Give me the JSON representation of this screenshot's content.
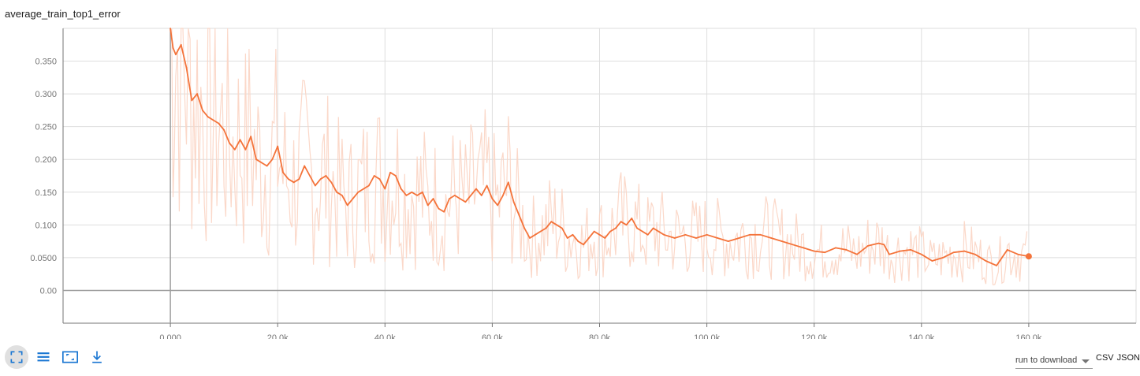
{
  "card": {
    "title": "average_train_top1_error"
  },
  "toolbar": {
    "buttons": [
      {
        "name": "expand-icon",
        "tooltip": ""
      },
      {
        "name": "list-icon",
        "tooltip": ""
      },
      {
        "name": "fit-domain-icon",
        "tooltip": ""
      },
      {
        "name": "download-icon",
        "tooltip": ""
      }
    ],
    "accent": "#1976d2"
  },
  "download": {
    "select_label": "run to download",
    "csv_label": "CSV",
    "json_label": "JSON"
  },
  "chart_data": {
    "type": "line",
    "title": "average_train_top1_error",
    "xlabel": "",
    "ylabel": "",
    "xlim": [
      -20000,
      180000
    ],
    "ylim": [
      -0.05,
      0.4
    ],
    "x_ticks": [
      0,
      20000,
      40000,
      60000,
      80000,
      100000,
      120000,
      140000,
      160000
    ],
    "x_tick_labels": [
      "0.000",
      "20.0k",
      "40.0k",
      "60.0k",
      "80.0k",
      "100.0k",
      "120.0k",
      "140.0k",
      "160.0k"
    ],
    "y_ticks": [
      0,
      0.05,
      0.1,
      0.15,
      0.2,
      0.25,
      0.3,
      0.35
    ],
    "y_tick_labels": [
      "0.00",
      "0.0500",
      "0.100",
      "0.150",
      "0.200",
      "0.250",
      "0.300",
      "0.350"
    ],
    "grid": true,
    "colors": {
      "smoothed": "#f4733a",
      "raw": "#fbd4c3",
      "grid": "#dedede",
      "axis": "#757575"
    },
    "series": [
      {
        "role": "smoothed",
        "x": [
          0,
          500,
          1000,
          2000,
          3000,
          4000,
          5000,
          6000,
          7000,
          8000,
          9000,
          10000,
          11000,
          12000,
          13000,
          14000,
          15000,
          16000,
          17000,
          18000,
          19000,
          20000,
          21000,
          22000,
          23000,
          24000,
          25000,
          26000,
          27000,
          28000,
          29000,
          30000,
          31000,
          32000,
          33000,
          34000,
          35000,
          36000,
          37000,
          38000,
          39000,
          40000,
          41000,
          42000,
          43000,
          44000,
          45000,
          46000,
          47000,
          48000,
          49000,
          50000,
          51000,
          52000,
          53000,
          54000,
          55000,
          56000,
          57000,
          58000,
          59000,
          60000,
          61000,
          62000,
          63000,
          64000,
          65000,
          66000,
          67000,
          68000,
          69000,
          70000,
          71000,
          72000,
          73000,
          74000,
          75000,
          76000,
          77000,
          78000,
          79000,
          80000,
          81000,
          82000,
          83000,
          84000,
          85000,
          86000,
          87000,
          88000,
          89000,
          90000,
          92000,
          94000,
          96000,
          98000,
          100000,
          102000,
          104000,
          106000,
          108000,
          110000,
          112000,
          114000,
          116000,
          118000,
          120000,
          122000,
          124000,
          126000,
          128000,
          130000,
          132000,
          133000,
          134000,
          136000,
          138000,
          140000,
          142000,
          144000,
          146000,
          148000,
          150000,
          152000,
          154000,
          156000,
          158000,
          160000
        ],
        "y": [
          0.4,
          0.37,
          0.36,
          0.375,
          0.34,
          0.29,
          0.3,
          0.275,
          0.265,
          0.26,
          0.255,
          0.245,
          0.225,
          0.215,
          0.23,
          0.215,
          0.235,
          0.2,
          0.195,
          0.19,
          0.2,
          0.22,
          0.18,
          0.17,
          0.165,
          0.17,
          0.19,
          0.175,
          0.16,
          0.17,
          0.175,
          0.165,
          0.15,
          0.145,
          0.13,
          0.14,
          0.15,
          0.155,
          0.16,
          0.175,
          0.17,
          0.155,
          0.18,
          0.175,
          0.155,
          0.145,
          0.15,
          0.145,
          0.15,
          0.13,
          0.14,
          0.125,
          0.12,
          0.14,
          0.145,
          0.14,
          0.135,
          0.145,
          0.155,
          0.145,
          0.16,
          0.14,
          0.13,
          0.145,
          0.165,
          0.135,
          0.115,
          0.095,
          0.08,
          0.085,
          0.09,
          0.095,
          0.105,
          0.1,
          0.095,
          0.08,
          0.085,
          0.075,
          0.07,
          0.08,
          0.09,
          0.085,
          0.08,
          0.09,
          0.095,
          0.105,
          0.1,
          0.11,
          0.095,
          0.09,
          0.085,
          0.095,
          0.085,
          0.08,
          0.085,
          0.08,
          0.085,
          0.08,
          0.075,
          0.08,
          0.085,
          0.085,
          0.08,
          0.075,
          0.07,
          0.065,
          0.06,
          0.058,
          0.065,
          0.062,
          0.055,
          0.068,
          0.072,
          0.07,
          0.055,
          0.06,
          0.062,
          0.055,
          0.045,
          0.05,
          0.058,
          0.06,
          0.055,
          0.045,
          0.038,
          0.062,
          0.055,
          0.052
        ]
      }
    ]
  }
}
